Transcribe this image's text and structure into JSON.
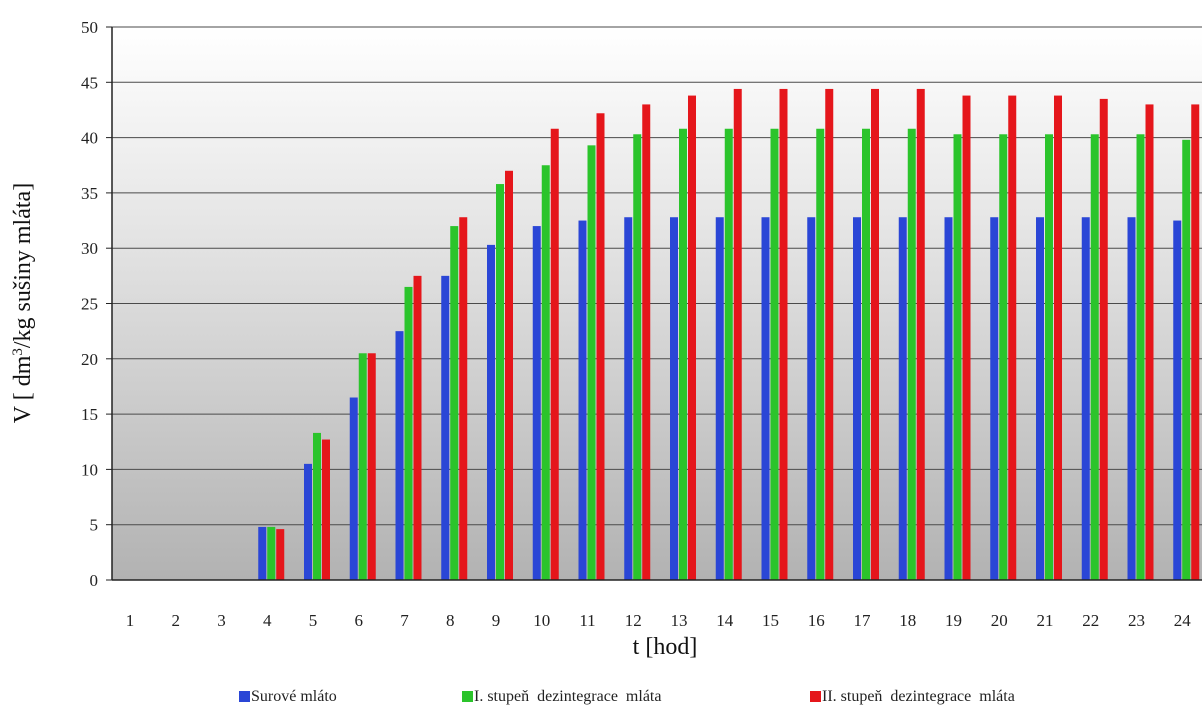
{
  "chart_data": {
    "type": "bar",
    "title": "",
    "xlabel": "t [hod]",
    "ylabel_parts": [
      "V [ dm",
      "3",
      "/kg sušiny mláta]"
    ],
    "ylim": [
      0,
      50
    ],
    "yticks": [
      0,
      5,
      10,
      15,
      20,
      25,
      30,
      35,
      40,
      45,
      50
    ],
    "grid": true,
    "legend_position": "bottom",
    "categories": [
      "1",
      "2",
      "3",
      "4",
      "5",
      "6",
      "7",
      "8",
      "9",
      "10",
      "11",
      "12",
      "13",
      "14",
      "15",
      "16",
      "17",
      "18",
      "19",
      "20",
      "21",
      "22",
      "23",
      "24"
    ],
    "series": [
      {
        "name": "Surové mláto",
        "color": "#2a46d6",
        "values": [
          0,
          0,
          0,
          4.8,
          10.5,
          16.5,
          22.5,
          27.5,
          30.3,
          32.0,
          32.5,
          32.8,
          32.8,
          32.8,
          32.8,
          32.8,
          32.8,
          32.8,
          32.8,
          32.8,
          32.8,
          32.8,
          32.8,
          32.5
        ]
      },
      {
        "name": "I. stupeň  dezintegrace  mláta",
        "color": "#2bc42b",
        "values": [
          0,
          0,
          0,
          4.8,
          13.3,
          20.5,
          26.5,
          32.0,
          35.8,
          37.5,
          39.3,
          40.3,
          40.8,
          40.8,
          40.8,
          40.8,
          40.8,
          40.8,
          40.3,
          40.3,
          40.3,
          40.3,
          40.3,
          39.8
        ]
      },
      {
        "name": "II. stupeň  dezintegrace  mláta",
        "color": "#e5161b",
        "values": [
          0,
          0,
          0,
          4.6,
          12.7,
          20.5,
          27.5,
          32.8,
          37.0,
          40.8,
          42.2,
          43.0,
          43.8,
          44.4,
          44.4,
          44.4,
          44.4,
          44.4,
          43.8,
          43.8,
          43.8,
          43.5,
          43.0,
          43.0
        ]
      }
    ]
  }
}
